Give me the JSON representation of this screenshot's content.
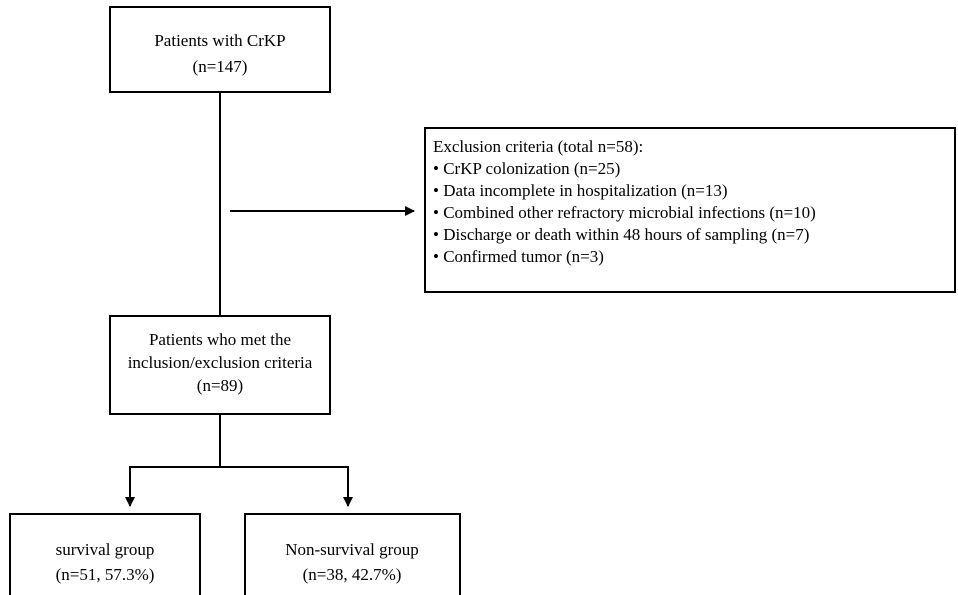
{
  "nodes": [
    {
      "lines": [
        "Patients with CrKP",
        "(n=147)"
      ]
    },
    {
      "lines": [
        "Patients who met the",
        "inclusion/exclusion criteria",
        "(n=89)"
      ]
    },
    {
      "lines": [
        "survival group",
        "(n=51, 57.3%)"
      ]
    },
    {
      "lines": [
        "Non-survival group",
        "(n=38, 42.7%)"
      ]
    }
  ],
  "exclusion": {
    "title": "Exclusion criteria (total n=58):",
    "items": [
      "• CrKP colonization (n=25)",
      "• Data incomplete in hospitalization (n=13)",
      "• Combined other refractory microbial infections (n=10)",
      "• Discharge or death within 48 hours of sampling (n=7)",
      "• Confirmed tumor (n=3)"
    ]
  }
}
